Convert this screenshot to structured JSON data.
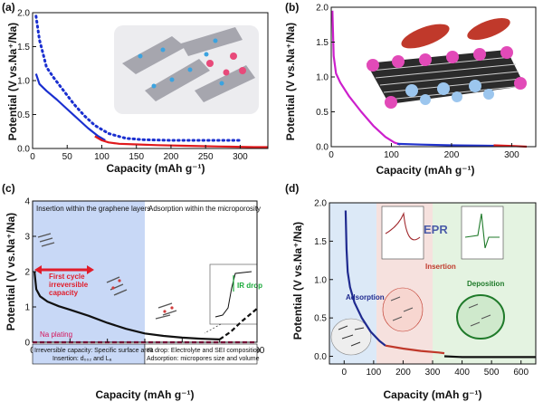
{
  "chart_data": [
    {
      "panel": "(a)",
      "type": "line",
      "xlabel": "Capacity (mAh g⁻¹)",
      "ylabel": "Potential (V vs.Na⁺/Na)",
      "xlim": [
        0,
        340
      ],
      "ylim": [
        0,
        2.0
      ],
      "xticks": [
        0,
        50,
        100,
        150,
        200,
        250,
        300
      ],
      "yticks": [
        0.0,
        0.5,
        1.0,
        1.5,
        2.0
      ],
      "grid": false,
      "series": [
        {
          "color": "#1a2fd0",
          "style": "solid",
          "x": [
            5,
            10,
            20,
            35,
            50,
            65,
            80,
            95,
            105
          ],
          "y": [
            1.1,
            0.95,
            0.85,
            0.72,
            0.58,
            0.44,
            0.3,
            0.18,
            0.12
          ]
        },
        {
          "color": "#1a2fd0",
          "style": "dotted",
          "x": [
            5,
            10,
            15,
            20,
            30,
            45,
            60,
            75,
            90,
            110,
            135,
            160,
            200,
            250,
            300
          ],
          "y": [
            1.95,
            1.6,
            1.4,
            1.2,
            1.05,
            0.85,
            0.65,
            0.48,
            0.34,
            0.22,
            0.15,
            0.13,
            0.12,
            0.12,
            0.12
          ]
        },
        {
          "color": "#e0191c",
          "style": "solid",
          "x": [
            90,
            100,
            110,
            125,
            150,
            180,
            220,
            270,
            320,
            340
          ],
          "y": [
            0.18,
            0.12,
            0.09,
            0.07,
            0.06,
            0.05,
            0.04,
            0.03,
            0.02,
            0.02
          ]
        }
      ]
    },
    {
      "panel": "(b)",
      "type": "line",
      "xlabel": "Capacity (mAh g⁻¹)",
      "ylabel": "Potential (V vs.Na⁺/Na)",
      "xlim": [
        0,
        340
      ],
      "ylim": [
        0,
        2.0
      ],
      "xticks": [
        0,
        100,
        200,
        300
      ],
      "yticks": [
        0.0,
        0.5,
        1.0,
        1.5,
        2.0
      ],
      "grid": false,
      "series": [
        {
          "color": "#cc1fcc",
          "style": "solid",
          "x": [
            2,
            4,
            8,
            15,
            30,
            50,
            70,
            90,
            105,
            115
          ],
          "y": [
            1.95,
            1.3,
            1.05,
            0.92,
            0.72,
            0.5,
            0.3,
            0.14,
            0.06,
            0.03
          ]
        },
        {
          "color": "#2233cc",
          "style": "solid",
          "x": [
            110,
            150,
            200,
            250,
            290
          ],
          "y": [
            0.04,
            0.03,
            0.02,
            0.015,
            0.01
          ]
        },
        {
          "color": "#e0191c",
          "style": "solid",
          "x": [
            270,
            300,
            325
          ],
          "y": [
            0.02,
            0.01,
            0.0
          ]
        }
      ]
    },
    {
      "panel": "(c)",
      "type": "line",
      "xlabel": "Capacity (mAh g⁻¹)",
      "ylabel": "Potential (V vs.Na⁺/Na)",
      "xlim": [
        0,
        600
      ],
      "ylim": [
        0,
        4
      ],
      "xticks": [
        0,
        100,
        200,
        300,
        400,
        500,
        600
      ],
      "yticks": [
        0,
        1,
        2,
        3,
        4
      ],
      "grid": false,
      "series": [
        {
          "color": "#111111",
          "style": "solid",
          "x": [
            5,
            10,
            20,
            40,
            70,
            100,
            150,
            200,
            250,
            300,
            350,
            400,
            450,
            500
          ],
          "y": [
            2.0,
            1.5,
            1.3,
            1.15,
            1.02,
            0.92,
            0.75,
            0.55,
            0.38,
            0.25,
            0.18,
            0.13,
            0.1,
            0.08
          ]
        },
        {
          "color": "#111111",
          "style": "dashed",
          "x": [
            500,
            530,
            560,
            600
          ],
          "y": [
            0.08,
            0.3,
            0.6,
            0.95
          ]
        },
        {
          "color": "#d4145a",
          "style": "dashed",
          "x": [
            0,
            600
          ],
          "y": [
            0.0,
            0.0
          ]
        }
      ],
      "annotations": {
        "region_left": "Insertion within the graphene layers",
        "region_right": "Adsorption within the microporosity",
        "first_cycle": [
          "First cycle",
          "irreversible",
          "capacity"
        ],
        "ir_drop": "IR drop",
        "na_plating": "Na plating",
        "box_left_1": "Irreversible capacity: Specific surface area",
        "box_left_2": "Insertion: d₀₀₂ and Lₐ",
        "box_right_1": "IR drop: Electrolyte and  SEI composition",
        "box_right_2": "Adsorption: micropores size and volume"
      }
    },
    {
      "panel": "(d)",
      "type": "line",
      "xlabel": "Capacity (mAh g⁻¹)",
      "ylabel": "Potential (V vs.Na⁺/Na)",
      "xlim": [
        -50,
        650
      ],
      "ylim": [
        -0.1,
        2.0
      ],
      "xticks": [
        0,
        100,
        200,
        300,
        400,
        500,
        600
      ],
      "yticks": [
        0.0,
        0.5,
        1.0,
        1.5,
        2.0
      ],
      "grid": false,
      "series": [
        {
          "color": "#1f2a8f",
          "style": "solid",
          "x": [
            5,
            8,
            12,
            20,
            35,
            60,
            90,
            120,
            140
          ],
          "y": [
            1.9,
            1.4,
            1.1,
            0.9,
            0.7,
            0.5,
            0.32,
            0.2,
            0.14
          ]
        },
        {
          "color": "#c0392b",
          "style": "solid",
          "x": [
            140,
            200,
            260,
            320,
            340
          ],
          "y": [
            0.14,
            0.1,
            0.07,
            0.05,
            0.04
          ]
        },
        {
          "color": "#111111",
          "style": "solid",
          "x": [
            340,
            400,
            500,
            600,
            650
          ],
          "y": [
            0.0,
            -0.01,
            -0.01,
            -0.01,
            -0.01
          ]
        }
      ],
      "annotations": {
        "adsorption": "Adsorption",
        "insertion": "Insertion",
        "deposition": "Deposition",
        "epr": "EPR",
        "inset_ticks": [
          "2.08",
          "2.04",
          "2.00",
          "1.96",
          "1.92"
        ],
        "inset_xlabel": "g"
      }
    }
  ],
  "panel_tags": [
    "(a)",
    "(b)",
    "(c)",
    "(d)"
  ]
}
